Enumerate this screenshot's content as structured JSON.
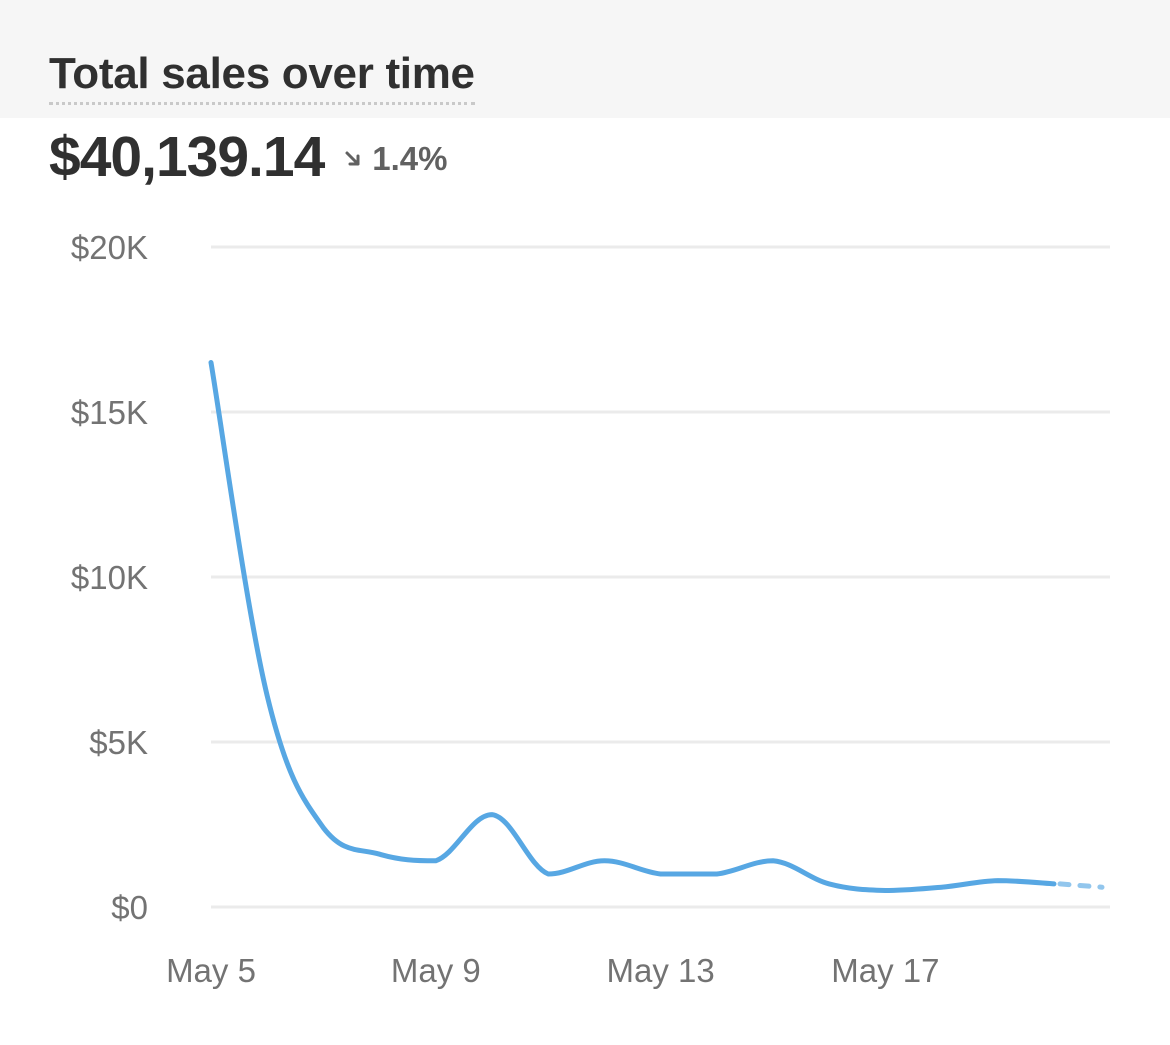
{
  "card": {
    "title": "Total sales over time",
    "total": "$40,139.14",
    "change": "1.4%",
    "change_direction": "down",
    "change_icon": "arrow-down-right-icon"
  },
  "colors": {
    "line": "#57a7e3",
    "grid": "#ebebeb",
    "header_band": "#f6f6f6",
    "tick_text": "#737373"
  },
  "chart_data": {
    "type": "line",
    "title": "Total sales over time",
    "xlabel": "",
    "ylabel": "",
    "x": [
      "May 5",
      "May 6",
      "May 7",
      "May 8",
      "May 9",
      "May 10",
      "May 11",
      "May 12",
      "May 13",
      "May 14",
      "May 15",
      "May 16",
      "May 17",
      "May 18",
      "May 19",
      "May 20"
    ],
    "x_tick_labels": [
      "May 5",
      "May 9",
      "May 13",
      "May 17"
    ],
    "x_tick_indices": [
      0,
      4,
      8,
      12
    ],
    "y_ticks": [
      0,
      5000,
      10000,
      15000,
      20000
    ],
    "y_tick_labels": [
      "$0",
      "$5K",
      "$10K",
      "$15K",
      "$20K"
    ],
    "ylim": [
      0,
      20000
    ],
    "series": [
      {
        "values": [
          16500,
          6400,
          2400,
          1600,
          1400,
          2800,
          1000,
          1400,
          1000,
          1000,
          1400,
          700,
          500,
          600,
          800,
          700
        ],
        "projected_next": 600
      }
    ],
    "grid": true,
    "legend": "none"
  }
}
